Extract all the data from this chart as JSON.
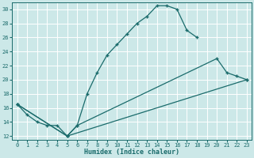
{
  "xlabel": "Humidex (Indice chaleur)",
  "bg_color": "#cce8e8",
  "grid_color": "#ffffff",
  "line_color": "#1a6b6b",
  "xlim": [
    -0.5,
    23.5
  ],
  "ylim": [
    11.5,
    31
  ],
  "xticks": [
    0,
    1,
    2,
    3,
    4,
    5,
    6,
    7,
    8,
    9,
    10,
    11,
    12,
    13,
    14,
    15,
    16,
    17,
    18,
    19,
    20,
    21,
    22,
    23
  ],
  "yticks": [
    12,
    14,
    16,
    18,
    20,
    22,
    24,
    26,
    28,
    30
  ],
  "line1_x": [
    0,
    1,
    2,
    3,
    4,
    5,
    6,
    7,
    8,
    9,
    10,
    11,
    12,
    13,
    14,
    15,
    16,
    17,
    18
  ],
  "line1_y": [
    16.5,
    15,
    14,
    13.5,
    13.5,
    12,
    13.5,
    18,
    21,
    23.5,
    25,
    26.5,
    28,
    29,
    30.5,
    30.5,
    30,
    27,
    26
  ],
  "line2_x": [
    0,
    5,
    6,
    20,
    21,
    22,
    23
  ],
  "line2_y": [
    16.5,
    12,
    13.5,
    23,
    21,
    20.5,
    20
  ],
  "line3_x": [
    0,
    5,
    23
  ],
  "line3_y": [
    16.5,
    12,
    20
  ]
}
